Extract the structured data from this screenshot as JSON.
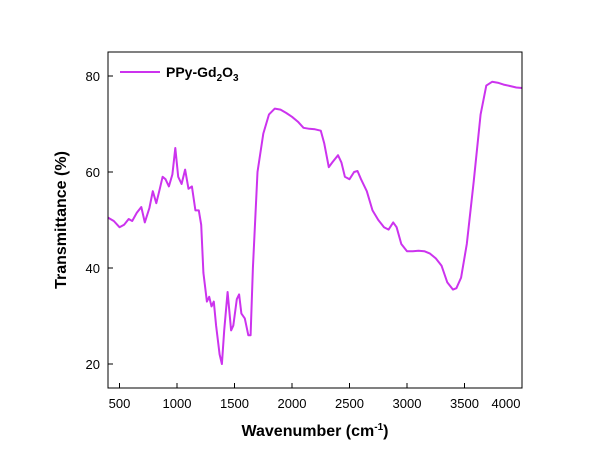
{
  "chart_data": {
    "type": "line",
    "title": "",
    "xlabel": "Wavenumber (cm",
    "xlabel_sup": "-1",
    "xlabel_end": ")",
    "ylabel": "Transmittance (%)",
    "xlim": [
      400,
      4000
    ],
    "ylim": [
      15,
      85
    ],
    "x_ticks": [
      500,
      1000,
      1500,
      2000,
      2500,
      3000,
      3500,
      4000
    ],
    "y_ticks": [
      20,
      40,
      60,
      80
    ],
    "grid": false,
    "legend_position": "top-left",
    "series": [
      {
        "name": "PPy-Gd2O3",
        "legend_parts": [
          "PPy-Gd",
          "2",
          "O",
          "3"
        ],
        "color": "#cc33ee",
        "points": [
          [
            400,
            50.5
          ],
          [
            450,
            49.8
          ],
          [
            500,
            48.5
          ],
          [
            540,
            49.0
          ],
          [
            580,
            50.2
          ],
          [
            610,
            49.8
          ],
          [
            650,
            51.5
          ],
          [
            690,
            52.7
          ],
          [
            720,
            49.5
          ],
          [
            760,
            52.5
          ],
          [
            790,
            56.0
          ],
          [
            820,
            53.5
          ],
          [
            850,
            56.5
          ],
          [
            875,
            59.0
          ],
          [
            900,
            58.5
          ],
          [
            930,
            57.0
          ],
          [
            960,
            59.5
          ],
          [
            985,
            65.0
          ],
          [
            1010,
            59.0
          ],
          [
            1040,
            57.5
          ],
          [
            1070,
            60.5
          ],
          [
            1100,
            56.5
          ],
          [
            1130,
            57.0
          ],
          [
            1160,
            52.0
          ],
          [
            1190,
            52.0
          ],
          [
            1210,
            49.0
          ],
          [
            1230,
            39.0
          ],
          [
            1260,
            33.0
          ],
          [
            1280,
            34.0
          ],
          [
            1300,
            32.0
          ],
          [
            1320,
            33.0
          ],
          [
            1340,
            28.0
          ],
          [
            1370,
            22.0
          ],
          [
            1390,
            20.0
          ],
          [
            1410,
            27.0
          ],
          [
            1440,
            35.0
          ],
          [
            1470,
            27.0
          ],
          [
            1490,
            28.0
          ],
          [
            1520,
            33.5
          ],
          [
            1540,
            34.5
          ],
          [
            1560,
            30.5
          ],
          [
            1590,
            29.5
          ],
          [
            1620,
            26.0
          ],
          [
            1640,
            26.0
          ],
          [
            1660,
            40.0
          ],
          [
            1700,
            60.0
          ],
          [
            1750,
            68.0
          ],
          [
            1800,
            72.0
          ],
          [
            1850,
            73.2
          ],
          [
            1900,
            73.0
          ],
          [
            1950,
            72.3
          ],
          [
            2000,
            71.5
          ],
          [
            2050,
            70.5
          ],
          [
            2100,
            69.2
          ],
          [
            2150,
            69.0
          ],
          [
            2200,
            68.9
          ],
          [
            2250,
            68.6
          ],
          [
            2280,
            66.0
          ],
          [
            2320,
            61.0
          ],
          [
            2350,
            62.0
          ],
          [
            2400,
            63.5
          ],
          [
            2430,
            62.0
          ],
          [
            2460,
            59.0
          ],
          [
            2500,
            58.5
          ],
          [
            2540,
            60.0
          ],
          [
            2570,
            60.2
          ],
          [
            2600,
            58.5
          ],
          [
            2650,
            56.0
          ],
          [
            2700,
            52.0
          ],
          [
            2750,
            50.0
          ],
          [
            2800,
            48.5
          ],
          [
            2840,
            48.0
          ],
          [
            2880,
            49.5
          ],
          [
            2910,
            48.5
          ],
          [
            2950,
            45.0
          ],
          [
            3000,
            43.5
          ],
          [
            3050,
            43.5
          ],
          [
            3100,
            43.6
          ],
          [
            3150,
            43.5
          ],
          [
            3200,
            43.0
          ],
          [
            3250,
            42.0
          ],
          [
            3300,
            40.5
          ],
          [
            3350,
            37.0
          ],
          [
            3400,
            35.5
          ],
          [
            3430,
            35.8
          ],
          [
            3470,
            38.0
          ],
          [
            3520,
            45.0
          ],
          [
            3580,
            58.0
          ],
          [
            3640,
            72.0
          ],
          [
            3690,
            78.0
          ],
          [
            3740,
            78.8
          ],
          [
            3790,
            78.6
          ],
          [
            3840,
            78.2
          ],
          [
            3900,
            77.9
          ],
          [
            3950,
            77.6
          ],
          [
            4000,
            77.5
          ]
        ]
      }
    ]
  }
}
